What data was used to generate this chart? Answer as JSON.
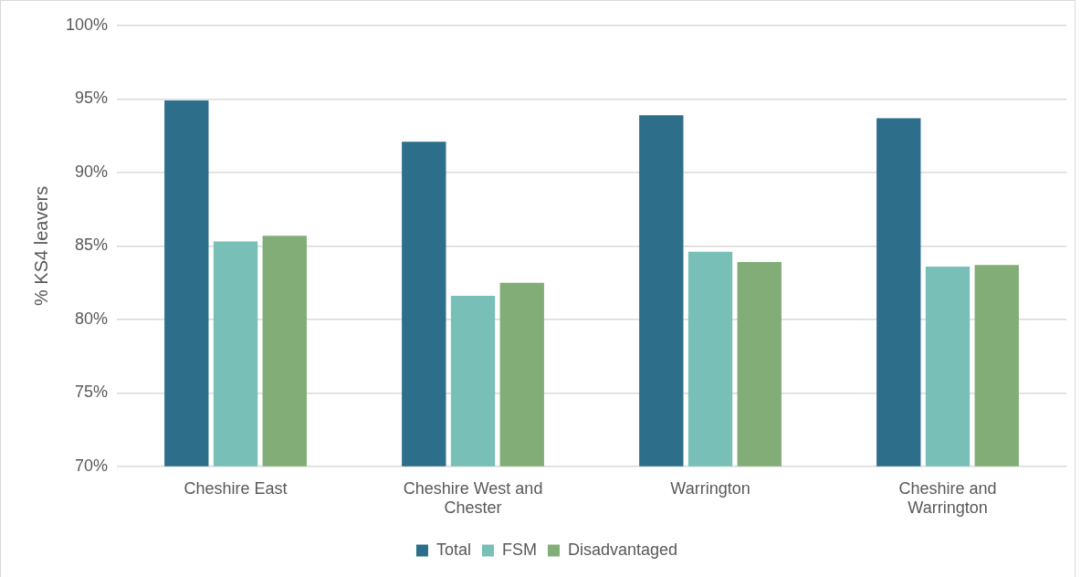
{
  "chart_data": {
    "type": "bar",
    "ylabel": "% KS4 leavers",
    "categories": [
      "Cheshire East",
      "Cheshire West and Chester",
      "Warrington",
      "Cheshire and Warrington"
    ],
    "series": [
      {
        "name": "Total",
        "color": "#2d6e8a",
        "values": [
          94.9,
          92.1,
          93.9,
          93.7
        ]
      },
      {
        "name": "FSM",
        "color": "#77bfb7",
        "values": [
          85.3,
          81.6,
          84.6,
          83.6
        ]
      },
      {
        "name": "Disadvantaged",
        "color": "#82ad77",
        "values": [
          85.7,
          82.5,
          83.9,
          83.7
        ]
      }
    ],
    "ylim": [
      70,
      100
    ],
    "yticks": [
      {
        "value": 70,
        "label": "70%"
      },
      {
        "value": 75,
        "label": "75%"
      },
      {
        "value": 80,
        "label": "80%"
      },
      {
        "value": 85,
        "label": "85%"
      },
      {
        "value": 90,
        "label": "90%"
      },
      {
        "value": 95,
        "label": "95%"
      },
      {
        "value": 100,
        "label": "100%"
      }
    ],
    "grid": "y",
    "legend": "bottom"
  }
}
